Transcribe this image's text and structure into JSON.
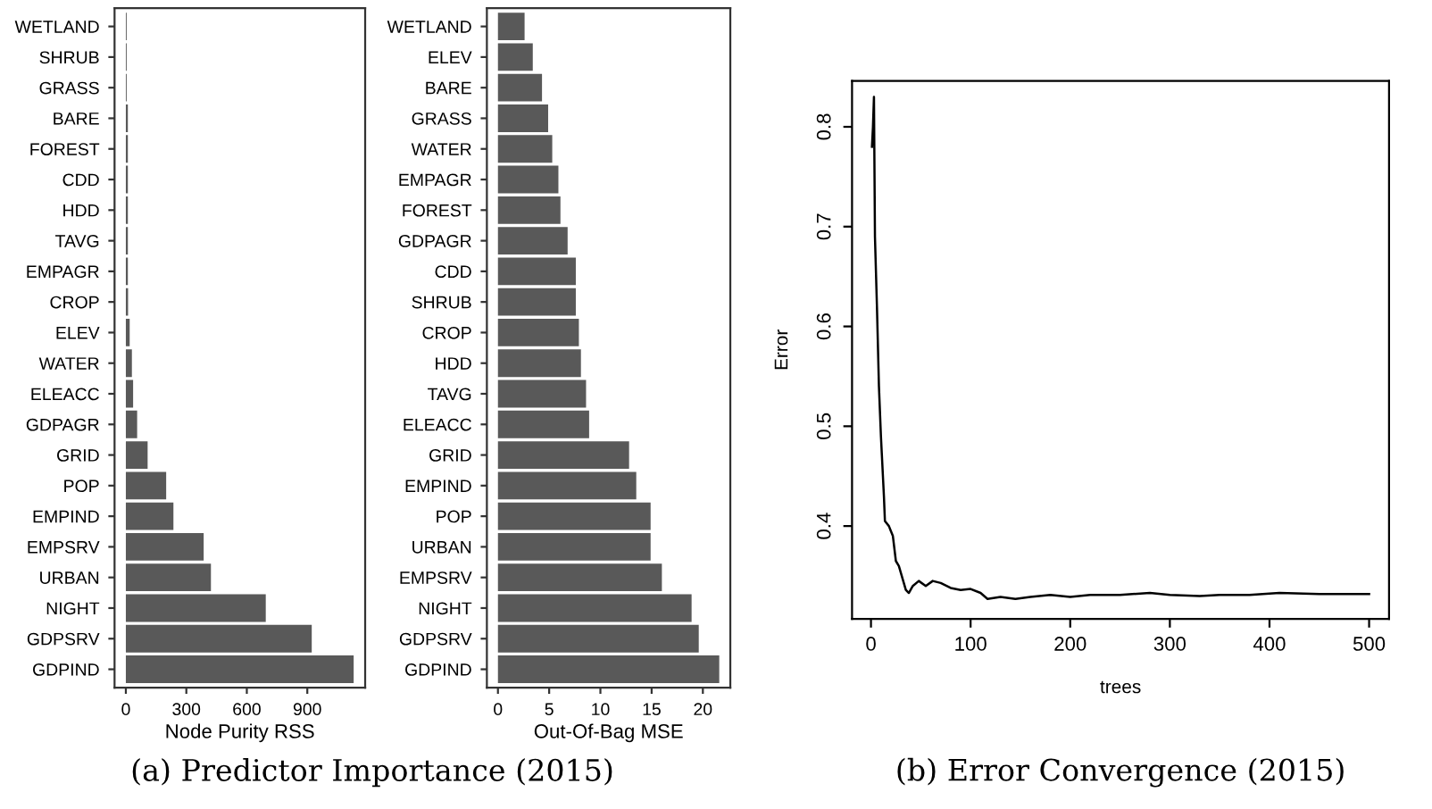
{
  "chart_data": [
    {
      "type": "bar",
      "orientation": "horizontal",
      "xlabel": "Node Purity RSS",
      "categories": [
        "WETLAND",
        "SHRUB",
        "GRASS",
        "BARE",
        "FOREST",
        "CDD",
        "HDD",
        "TAVG",
        "EMPAGR",
        "CROP",
        "ELEV",
        "WATER",
        "ELEACC",
        "GDPAGR",
        "GRID",
        "POP",
        "EMPIND",
        "EMPSRV",
        "URBAN",
        "NIGHT",
        "GDPSRV",
        "GDPIND"
      ],
      "values": [
        4,
        4,
        4,
        10,
        10,
        10,
        10,
        10,
        10,
        11,
        19,
        30,
        36,
        56,
        108,
        200,
        236,
        386,
        422,
        694,
        922,
        1130
      ],
      "color": "#595959",
      "xlim": [
        -56,
        1187
      ],
      "xticks": [
        0,
        300,
        600,
        900
      ],
      "grid": false,
      "annotations": [
        "(a) Predictor Importance (2015)"
      ]
    },
    {
      "type": "bar",
      "orientation": "horizontal",
      "xlabel": "Out-Of-Bag MSE",
      "categories": [
        "WETLAND",
        "ELEV",
        "BARE",
        "GRASS",
        "WATER",
        "EMPAGR",
        "FOREST",
        "GDPAGR",
        "CDD",
        "SHRUB",
        "CROP",
        "HDD",
        "TAVG",
        "ELEACC",
        "GRID",
        "EMPIND",
        "POP",
        "URBAN",
        "EMPSRV",
        "NIGHT",
        "GDPSRV",
        "GDPIND"
      ],
      "values": [
        2.6,
        3.4,
        4.3,
        4.9,
        5.3,
        5.9,
        6.1,
        6.8,
        7.6,
        7.6,
        7.9,
        8.1,
        8.6,
        8.9,
        12.8,
        13.5,
        14.9,
        14.9,
        16.0,
        18.9,
        19.6,
        21.6
      ],
      "color": "#595959",
      "xlim": [
        -1.08,
        22.68
      ],
      "xticks": [
        0,
        5,
        10,
        15,
        20
      ],
      "grid": false
    },
    {
      "type": "line",
      "xlabel": "trees",
      "ylabel": "Error",
      "color": "#000000",
      "line_style": "solid",
      "marker": "none",
      "grid": false,
      "x": [
        1,
        2,
        3,
        4,
        6,
        8,
        10,
        13,
        14,
        18,
        20,
        22,
        25,
        28,
        35,
        38,
        42,
        48,
        55,
        62,
        70,
        80,
        90,
        100,
        110,
        117,
        130,
        145,
        160,
        180,
        200,
        220,
        250,
        280,
        300,
        330,
        350,
        380,
        410,
        450,
        500
      ],
      "values": [
        0.78,
        0.8,
        0.83,
        0.69,
        0.62,
        0.54,
        0.49,
        0.43,
        0.405,
        0.4,
        0.395,
        0.39,
        0.365,
        0.36,
        0.336,
        0.333,
        0.34,
        0.345,
        0.34,
        0.345,
        0.343,
        0.338,
        0.336,
        0.337,
        0.333,
        0.327,
        0.329,
        0.327,
        0.329,
        0.331,
        0.329,
        0.331,
        0.331,
        0.333,
        0.331,
        0.33,
        0.331,
        0.331,
        0.333,
        0.332,
        0.332
      ],
      "xlim": [
        -19,
        520
      ],
      "ylim": [
        0.307,
        0.846
      ],
      "xticks": [
        0,
        100,
        200,
        300,
        400,
        500
      ],
      "yticks": [
        0.4,
        0.5,
        0.6,
        0.7,
        0.8
      ],
      "annotations": [
        "(b) Error Convergence (2015)"
      ]
    }
  ]
}
